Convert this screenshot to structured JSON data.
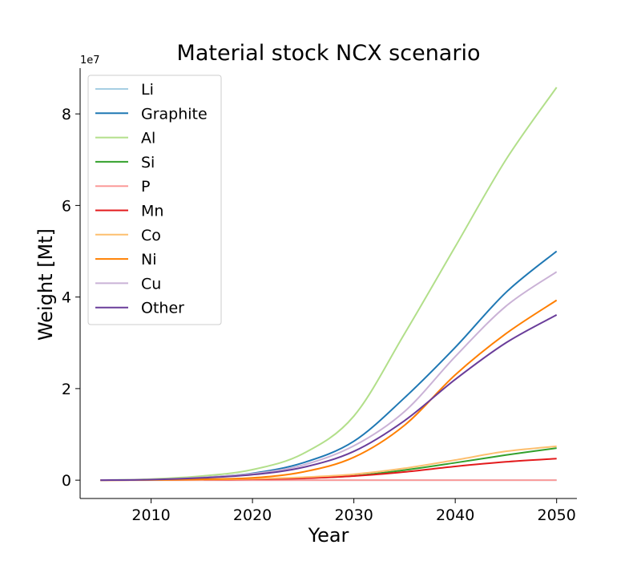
{
  "chart_data": {
    "type": "line",
    "title": "Material stock NCX scenario",
    "xlabel": "Year",
    "ylabel": "Weight [Mt]",
    "y_offset_label": "1e7",
    "xlim": [
      2003,
      2052
    ],
    "ylim": [
      -4000000.0,
      90000000.0
    ],
    "x_ticks": [
      2010,
      2020,
      2030,
      2040,
      2050
    ],
    "x_tick_labels": [
      "2010",
      "2020",
      "2030",
      "2040",
      "2050"
    ],
    "y_ticks": [
      0,
      20000000,
      40000000,
      60000000,
      80000000
    ],
    "y_tick_labels": [
      "0",
      "2",
      "4",
      "6",
      "8"
    ],
    "grid": false,
    "legend_position": "top-left",
    "x": [
      2005,
      2010,
      2015,
      2020,
      2025,
      2030,
      2035,
      2040,
      2045,
      2050
    ],
    "series": [
      {
        "name": "Li",
        "color": "#a6cee3",
        "values": [
          0,
          0,
          0,
          0,
          0,
          0,
          0,
          0,
          0,
          0
        ]
      },
      {
        "name": "Graphite",
        "color": "#1f78b4",
        "values": [
          0,
          150000,
          600000,
          1500000,
          3800000,
          8500000,
          18000000,
          29000000,
          41000000,
          50000000
        ]
      },
      {
        "name": "Al",
        "color": "#b2df8a",
        "values": [
          0,
          250000,
          900000,
          2300000,
          5800000,
          14000000,
          32000000,
          51000000,
          70000000,
          85800000
        ]
      },
      {
        "name": "Si",
        "color": "#33a02c",
        "values": [
          0,
          30000,
          100000,
          200000,
          450000,
          950000,
          2200000,
          3800000,
          5500000,
          7000000
        ]
      },
      {
        "name": "P",
        "color": "#fb9a99",
        "values": [
          0,
          0,
          0,
          0,
          0,
          0,
          0,
          0,
          0,
          0
        ]
      },
      {
        "name": "Mn",
        "color": "#e31a1c",
        "values": [
          0,
          30000,
          100000,
          200000,
          400000,
          900000,
          1800000,
          3000000,
          4000000,
          4700000
        ]
      },
      {
        "name": "Co",
        "color": "#fdbf6f",
        "values": [
          0,
          30000,
          120000,
          300000,
          650000,
          1300000,
          2600000,
          4400000,
          6300000,
          7400000
        ]
      },
      {
        "name": "Ni",
        "color": "#ff7f00",
        "values": [
          0,
          50000,
          200000,
          500000,
          1800000,
          5000000,
          12000000,
          23000000,
          32000000,
          39300000
        ]
      },
      {
        "name": "Cu",
        "color": "#cab2d6",
        "values": [
          0,
          150000,
          600000,
          1400000,
          3300000,
          7500000,
          15000000,
          27000000,
          38000000,
          45500000
        ]
      },
      {
        "name": "Other",
        "color": "#6a3d9a",
        "values": [
          0,
          120000,
          500000,
          1200000,
          2800000,
          6300000,
          13000000,
          22000000,
          30000000,
          36100000
        ]
      }
    ]
  }
}
